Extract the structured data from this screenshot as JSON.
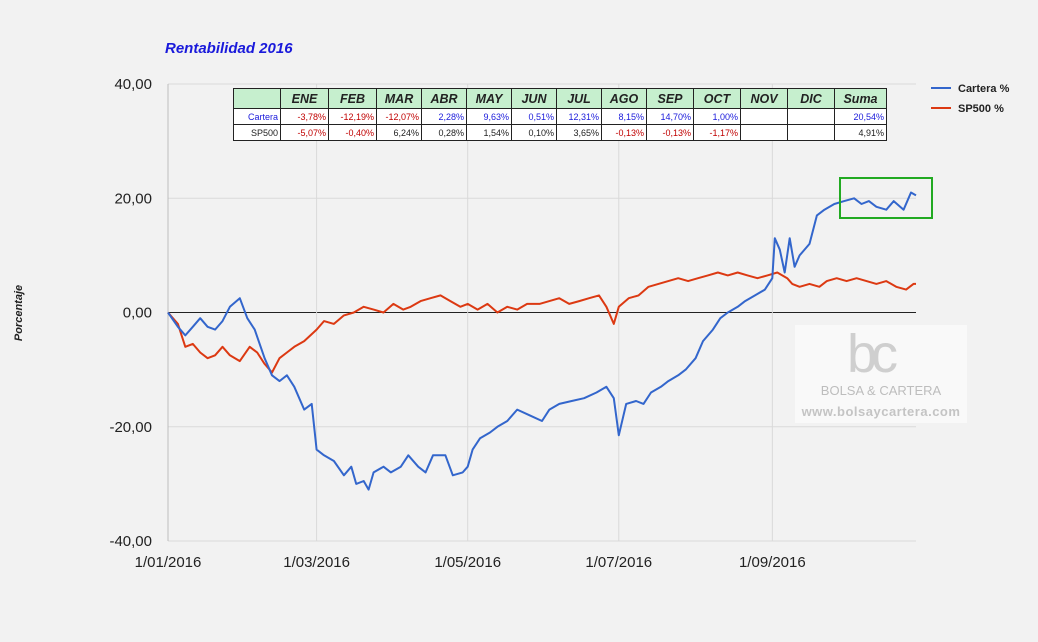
{
  "chart_data": {
    "type": "line",
    "title": "Rentabilidad 2016",
    "ylabel": "Porcentaje",
    "xlabel": "",
    "ylim": [
      -40,
      40
    ],
    "yticks": [
      "40,00",
      "20,00",
      "0,00",
      "-20,00",
      "-40,00"
    ],
    "xticks": [
      "1/01/2016",
      "1/03/2016",
      "1/05/2016",
      "1/07/2016",
      "1/09/2016"
    ],
    "legend_position": "top-right",
    "series": [
      {
        "name": "Cartera %",
        "color": "#3366cc",
        "points": [
          [
            "2016-01-01",
            0
          ],
          [
            "2016-01-05",
            -2.5
          ],
          [
            "2016-01-08",
            -4
          ],
          [
            "2016-01-11",
            -2.5
          ],
          [
            "2016-01-14",
            -1
          ],
          [
            "2016-01-17",
            -2.5
          ],
          [
            "2016-01-20",
            -3
          ],
          [
            "2016-01-23",
            -1.5
          ],
          [
            "2016-01-26",
            1
          ],
          [
            "2016-01-30",
            2.5
          ],
          [
            "2016-02-02",
            -1
          ],
          [
            "2016-02-05",
            -3
          ],
          [
            "2016-02-09",
            -8
          ],
          [
            "2016-02-12",
            -11
          ],
          [
            "2016-02-15",
            -12
          ],
          [
            "2016-02-18",
            -11
          ],
          [
            "2016-02-21",
            -13
          ],
          [
            "2016-02-25",
            -17
          ],
          [
            "2016-02-28",
            -16
          ],
          [
            "2016-03-01",
            -24
          ],
          [
            "2016-03-04",
            -25
          ],
          [
            "2016-03-08",
            -26
          ],
          [
            "2016-03-12",
            -28.5
          ],
          [
            "2016-03-15",
            -27
          ],
          [
            "2016-03-17",
            -30
          ],
          [
            "2016-03-20",
            -29.5
          ],
          [
            "2016-03-22",
            -31
          ],
          [
            "2016-03-24",
            -28
          ],
          [
            "2016-03-28",
            -27
          ],
          [
            "2016-03-31",
            -28
          ],
          [
            "2016-04-04",
            -27
          ],
          [
            "2016-04-07",
            -25
          ],
          [
            "2016-04-11",
            -27
          ],
          [
            "2016-04-14",
            -28
          ],
          [
            "2016-04-17",
            -25
          ],
          [
            "2016-04-22",
            -25
          ],
          [
            "2016-04-25",
            -28.5
          ],
          [
            "2016-04-29",
            -28
          ],
          [
            "2016-05-01",
            -27
          ],
          [
            "2016-05-03",
            -24
          ],
          [
            "2016-05-06",
            -22
          ],
          [
            "2016-05-10",
            -21
          ],
          [
            "2016-05-13",
            -20
          ],
          [
            "2016-05-17",
            -19
          ],
          [
            "2016-05-21",
            -17
          ],
          [
            "2016-05-26",
            -18
          ],
          [
            "2016-05-31",
            -19
          ],
          [
            "2016-06-03",
            -17
          ],
          [
            "2016-06-07",
            -16
          ],
          [
            "2016-06-12",
            -15.5
          ],
          [
            "2016-06-17",
            -15
          ],
          [
            "2016-06-22",
            -14
          ],
          [
            "2016-06-26",
            -13
          ],
          [
            "2016-06-29",
            -15
          ],
          [
            "2016-07-01",
            -21.5
          ],
          [
            "2016-07-04",
            -16
          ],
          [
            "2016-07-08",
            -15.5
          ],
          [
            "2016-07-11",
            -16
          ],
          [
            "2016-07-14",
            -14
          ],
          [
            "2016-07-18",
            -13
          ],
          [
            "2016-07-21",
            -12
          ],
          [
            "2016-07-25",
            -11
          ],
          [
            "2016-07-28",
            -10
          ],
          [
            "2016-08-01",
            -8
          ],
          [
            "2016-08-04",
            -5
          ],
          [
            "2016-08-08",
            -3
          ],
          [
            "2016-08-11",
            -1
          ],
          [
            "2016-08-14",
            0
          ],
          [
            "2016-08-18",
            1
          ],
          [
            "2016-08-21",
            2
          ],
          [
            "2016-08-25",
            3
          ],
          [
            "2016-08-29",
            4
          ],
          [
            "2016-09-01",
            6
          ],
          [
            "2016-09-02",
            13
          ],
          [
            "2016-09-04",
            11
          ],
          [
            "2016-09-06",
            7
          ],
          [
            "2016-09-08",
            13
          ],
          [
            "2016-09-10",
            8
          ],
          [
            "2016-09-12",
            10
          ],
          [
            "2016-09-16",
            12
          ],
          [
            "2016-09-19",
            17
          ],
          [
            "2016-09-22",
            18
          ],
          [
            "2016-09-26",
            19
          ],
          [
            "2016-09-30",
            19.5
          ],
          [
            "2016-10-04",
            20
          ],
          [
            "2016-10-07",
            19
          ],
          [
            "2016-10-10",
            19.5
          ],
          [
            "2016-10-13",
            18.5
          ],
          [
            "2016-10-17",
            18
          ],
          [
            "2016-10-20",
            19.5
          ],
          [
            "2016-10-24",
            18
          ],
          [
            "2016-10-27",
            21
          ],
          [
            "2016-10-29",
            20.5
          ]
        ]
      },
      {
        "name": "SP500 %",
        "color": "#dc3912",
        "points": [
          [
            "2016-01-01",
            0
          ],
          [
            "2016-01-05",
            -2
          ],
          [
            "2016-01-08",
            -6
          ],
          [
            "2016-01-11",
            -5.5
          ],
          [
            "2016-01-14",
            -7
          ],
          [
            "2016-01-17",
            -8
          ],
          [
            "2016-01-20",
            -7.5
          ],
          [
            "2016-01-23",
            -6
          ],
          [
            "2016-01-26",
            -7.5
          ],
          [
            "2016-01-30",
            -8.5
          ],
          [
            "2016-02-03",
            -6
          ],
          [
            "2016-02-06",
            -7
          ],
          [
            "2016-02-09",
            -9
          ],
          [
            "2016-02-12",
            -10.5
          ],
          [
            "2016-02-15",
            -8
          ],
          [
            "2016-02-18",
            -7
          ],
          [
            "2016-02-21",
            -6
          ],
          [
            "2016-02-25",
            -5
          ],
          [
            "2016-03-01",
            -3
          ],
          [
            "2016-03-04",
            -1.5
          ],
          [
            "2016-03-08",
            -2
          ],
          [
            "2016-03-12",
            -0.5
          ],
          [
            "2016-03-16",
            0
          ],
          [
            "2016-03-20",
            1
          ],
          [
            "2016-03-24",
            0.5
          ],
          [
            "2016-03-28",
            0
          ],
          [
            "2016-04-01",
            1.5
          ],
          [
            "2016-04-05",
            0.5
          ],
          [
            "2016-04-08",
            1
          ],
          [
            "2016-04-12",
            2
          ],
          [
            "2016-04-16",
            2.5
          ],
          [
            "2016-04-20",
            3
          ],
          [
            "2016-04-24",
            2
          ],
          [
            "2016-04-28",
            1
          ],
          [
            "2016-05-01",
            1.5
          ],
          [
            "2016-05-05",
            0.5
          ],
          [
            "2016-05-09",
            1.5
          ],
          [
            "2016-05-13",
            0
          ],
          [
            "2016-05-17",
            1
          ],
          [
            "2016-05-21",
            0.5
          ],
          [
            "2016-05-25",
            1.5
          ],
          [
            "2016-05-30",
            1.5
          ],
          [
            "2016-06-03",
            2
          ],
          [
            "2016-06-07",
            2.5
          ],
          [
            "2016-06-11",
            1.5
          ],
          [
            "2016-06-15",
            2
          ],
          [
            "2016-06-19",
            2.5
          ],
          [
            "2016-06-23",
            3
          ],
          [
            "2016-06-26",
            1
          ],
          [
            "2016-06-29",
            -2
          ],
          [
            "2016-07-01",
            1
          ],
          [
            "2016-07-05",
            2.5
          ],
          [
            "2016-07-09",
            3
          ],
          [
            "2016-07-13",
            4.5
          ],
          [
            "2016-07-17",
            5
          ],
          [
            "2016-07-21",
            5.5
          ],
          [
            "2016-07-25",
            6
          ],
          [
            "2016-07-29",
            5.5
          ],
          [
            "2016-08-02",
            6
          ],
          [
            "2016-08-06",
            6.5
          ],
          [
            "2016-08-10",
            7
          ],
          [
            "2016-08-14",
            6.5
          ],
          [
            "2016-08-18",
            7
          ],
          [
            "2016-08-22",
            6.5
          ],
          [
            "2016-08-26",
            6
          ],
          [
            "2016-08-30",
            6.5
          ],
          [
            "2016-09-03",
            7
          ],
          [
            "2016-09-07",
            6
          ],
          [
            "2016-09-09",
            5
          ],
          [
            "2016-09-12",
            4.5
          ],
          [
            "2016-09-16",
            5
          ],
          [
            "2016-09-20",
            4.5
          ],
          [
            "2016-09-23",
            5.5
          ],
          [
            "2016-09-27",
            6
          ],
          [
            "2016-10-01",
            5.5
          ],
          [
            "2016-10-05",
            6
          ],
          [
            "2016-10-09",
            5.5
          ],
          [
            "2016-10-13",
            5
          ],
          [
            "2016-10-17",
            5.5
          ],
          [
            "2016-10-21",
            4.5
          ],
          [
            "2016-10-25",
            4
          ],
          [
            "2016-10-28",
            5
          ],
          [
            "2016-10-29",
            5
          ]
        ]
      }
    ],
    "highlight_box_color": "#22aa22",
    "table": {
      "header": [
        "",
        "ENE",
        "FEB",
        "MAR",
        "ABR",
        "MAY",
        "JUN",
        "JUL",
        "AGO",
        "SEP",
        "OCT",
        "NOV",
        "DIC",
        "Suma"
      ],
      "rows": [
        {
          "label": "Cartera",
          "cells": [
            "-3,78%",
            "-12,19%",
            "-12,07%",
            "2,28%",
            "9,63%",
            "0,51%",
            "12,31%",
            "8,15%",
            "14,70%",
            "1,00%",
            "",
            "",
            "20,54%"
          ]
        },
        {
          "label": "SP500",
          "cells": [
            "-5,07%",
            "-0,40%",
            "6,24%",
            "0,28%",
            "1,54%",
            "0,10%",
            "3,65%",
            "-0,13%",
            "-0,13%",
            "-1,17%",
            "",
            "",
            "4,91%"
          ]
        }
      ]
    }
  },
  "watermark": {
    "logo": "bc",
    "brand": "BOLSA & CARTERA",
    "url": "www.bolsaycartera.com"
  }
}
